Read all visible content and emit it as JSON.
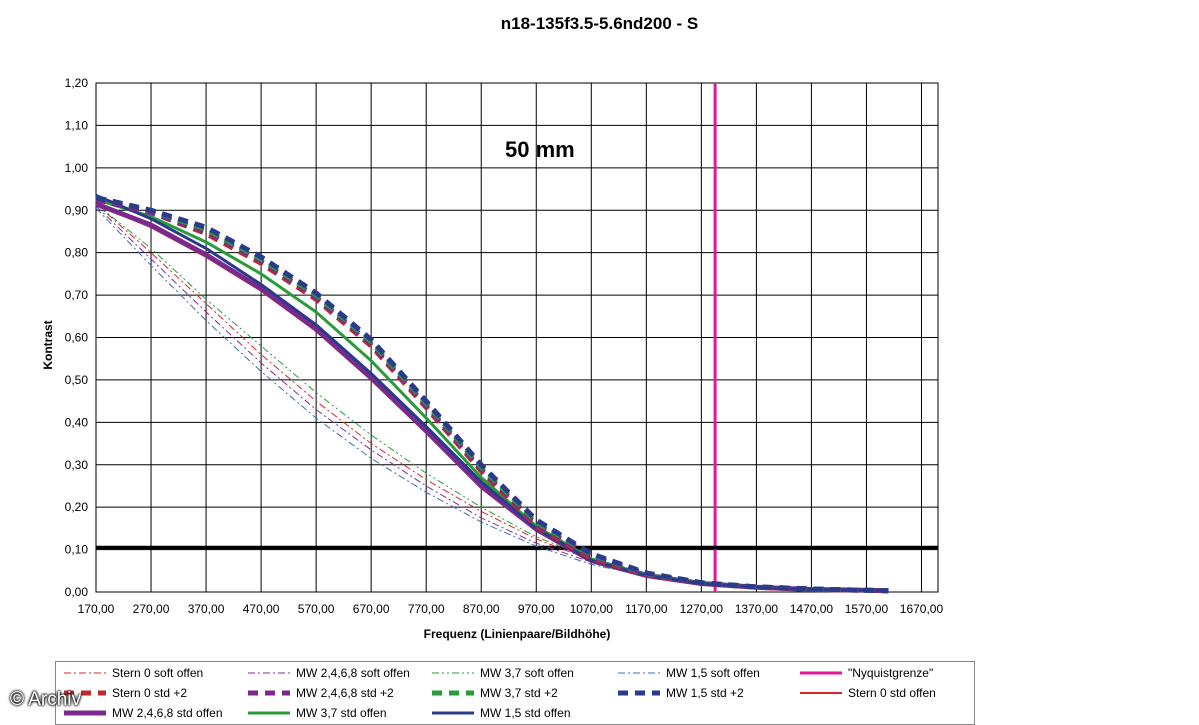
{
  "chart_data": {
    "type": "line",
    "title": "n18-135f3.5-5.6nd200 - S",
    "annotation": "50 mm",
    "xlabel": "Frequenz (Linienpaare/Bildhöhe)",
    "ylabel": "Kontrast",
    "xlim": [
      170,
      1700
    ],
    "ylim": [
      0,
      1.2
    ],
    "xticks": [
      "170,00",
      "270,00",
      "370,00",
      "470,00",
      "570,00",
      "670,00",
      "770,00",
      "870,00",
      "970,00",
      "1070,00",
      "1170,00",
      "1270,00",
      "1370,00",
      "1470,00",
      "1570,00",
      "1670,00"
    ],
    "yticks": [
      "0,00",
      "0,10",
      "0,20",
      "0,30",
      "0,40",
      "0,50",
      "0,60",
      "0,70",
      "0,80",
      "0,90",
      "1,00",
      "1,10",
      "1,20"
    ],
    "grid": true,
    "reference_lines": [
      {
        "kind": "vertical",
        "x": 1295,
        "color": "#e0199a"
      },
      {
        "kind": "horizontal",
        "y": 0.105,
        "color": "#000000"
      }
    ],
    "series": [
      {
        "name": "Stern 0 soft offen",
        "color": "#d8262c",
        "dash": "dashdot",
        "width": 1,
        "x": [
          170,
          270,
          370,
          470,
          570,
          670,
          770,
          870,
          970,
          1070,
          1170,
          1270,
          1370,
          1470,
          1570,
          1610
        ],
        "y": [
          0.915,
          0.8,
          0.68,
          0.56,
          0.45,
          0.35,
          0.265,
          0.19,
          0.125,
          0.075,
          0.042,
          0.022,
          0.012,
          0.007,
          0.004,
          0.003
        ]
      },
      {
        "name": "MW 2,4,6,8 soft offen",
        "color": "#8a2a93",
        "dash": "dashdot",
        "width": 1,
        "x": [
          170,
          270,
          370,
          470,
          570,
          670,
          770,
          870,
          970,
          1070,
          1170,
          1270,
          1370,
          1470,
          1570,
          1610
        ],
        "y": [
          0.91,
          0.785,
          0.66,
          0.54,
          0.43,
          0.335,
          0.25,
          0.175,
          0.115,
          0.07,
          0.04,
          0.021,
          0.012,
          0.007,
          0.004,
          0.003
        ]
      },
      {
        "name": "MW 3,7 soft offen",
        "color": "#2a9b3a",
        "dash": "dashdotdot",
        "width": 1,
        "x": [
          170,
          270,
          370,
          470,
          570,
          670,
          770,
          870,
          970,
          1070,
          1170,
          1270,
          1370,
          1470,
          1570,
          1610
        ],
        "y": [
          0.915,
          0.81,
          0.69,
          0.58,
          0.47,
          0.37,
          0.28,
          0.2,
          0.13,
          0.08,
          0.045,
          0.024,
          0.013,
          0.007,
          0.004,
          0.003
        ]
      },
      {
        "name": "MW 1,5 soft offen",
        "color": "#3a6fb5",
        "dash": "dashdot",
        "width": 1,
        "x": [
          170,
          270,
          370,
          470,
          570,
          670,
          770,
          870,
          970,
          1070,
          1170,
          1270,
          1370,
          1470,
          1570,
          1610
        ],
        "y": [
          0.905,
          0.77,
          0.64,
          0.52,
          0.41,
          0.315,
          0.235,
          0.165,
          0.108,
          0.065,
          0.037,
          0.02,
          0.011,
          0.006,
          0.004,
          0.003
        ]
      },
      {
        "name": "\"Nyquistgrenze\"",
        "color": "#e0199a",
        "dash": "solid",
        "width": 3
      },
      {
        "name": "Stern 0 std +2",
        "color": "#c0282e",
        "dash": "dash",
        "width": 5,
        "x": [
          170,
          270,
          370,
          470,
          570,
          670,
          770,
          870,
          970,
          1070,
          1170,
          1270,
          1370,
          1470,
          1570,
          1610
        ],
        "y": [
          0.925,
          0.895,
          0.845,
          0.775,
          0.69,
          0.58,
          0.435,
          0.285,
          0.155,
          0.08,
          0.04,
          0.02,
          0.011,
          0.006,
          0.004,
          0.003
        ]
      },
      {
        "name": "MW 2,4,6,8 std +2",
        "color": "#7b2a8c",
        "dash": "dash",
        "width": 5,
        "x": [
          170,
          270,
          370,
          470,
          570,
          670,
          770,
          870,
          970,
          1070,
          1170,
          1270,
          1370,
          1470,
          1570,
          1610
        ],
        "y": [
          0.925,
          0.895,
          0.85,
          0.78,
          0.695,
          0.585,
          0.44,
          0.29,
          0.16,
          0.085,
          0.042,
          0.021,
          0.012,
          0.007,
          0.004,
          0.003
        ]
      },
      {
        "name": "MW 3,7 std +2",
        "color": "#2a9b3a",
        "dash": "dash",
        "width": 5,
        "x": [
          170,
          270,
          370,
          470,
          570,
          670,
          770,
          870,
          970,
          1070,
          1170,
          1270,
          1370,
          1470,
          1570,
          1610
        ],
        "y": [
          0.93,
          0.9,
          0.855,
          0.785,
          0.7,
          0.59,
          0.445,
          0.295,
          0.165,
          0.088,
          0.044,
          0.022,
          0.012,
          0.007,
          0.004,
          0.003
        ]
      },
      {
        "name": "MW 1,5 std +2",
        "color": "#2a3a8c",
        "dash": "dash",
        "width": 5,
        "x": [
          170,
          270,
          370,
          470,
          570,
          670,
          770,
          870,
          970,
          1070,
          1170,
          1270,
          1370,
          1470,
          1570,
          1610
        ],
        "y": [
          0.93,
          0.9,
          0.86,
          0.79,
          0.705,
          0.595,
          0.45,
          0.3,
          0.17,
          0.09,
          0.045,
          0.022,
          0.012,
          0.007,
          0.004,
          0.003
        ]
      },
      {
        "name": "Stern 0 std offen",
        "color": "#d8262c",
        "dash": "solid",
        "width": 2,
        "x": [
          170,
          270,
          370,
          470,
          570,
          670,
          770,
          870,
          970,
          1070,
          1170,
          1270,
          1370,
          1470,
          1570,
          1610
        ],
        "y": [
          0.915,
          0.86,
          0.79,
          0.71,
          0.615,
          0.5,
          0.375,
          0.245,
          0.145,
          0.072,
          0.038,
          0.02,
          0.011,
          0.006,
          0.004,
          0.003
        ]
      },
      {
        "name": "MW 2,4,6,8 std offen",
        "color": "#7b2a8c",
        "dash": "solid",
        "width": 5,
        "x": [
          170,
          270,
          370,
          470,
          570,
          670,
          770,
          870,
          970,
          1070,
          1170,
          1270,
          1370,
          1470,
          1570,
          1610
        ],
        "y": [
          0.915,
          0.865,
          0.795,
          0.715,
          0.62,
          0.505,
          0.38,
          0.25,
          0.148,
          0.074,
          0.039,
          0.02,
          0.011,
          0.006,
          0.004,
          0.003
        ]
      },
      {
        "name": "MW 3,7 std offen",
        "color": "#2a9b3a",
        "dash": "solid",
        "width": 3,
        "x": [
          170,
          270,
          370,
          470,
          570,
          670,
          770,
          870,
          970,
          1070,
          1170,
          1270,
          1370,
          1470,
          1570,
          1610
        ],
        "y": [
          0.925,
          0.885,
          0.825,
          0.75,
          0.66,
          0.545,
          0.41,
          0.27,
          0.155,
          0.078,
          0.04,
          0.021,
          0.011,
          0.006,
          0.004,
          0.003
        ]
      },
      {
        "name": "MW 1,5 std offen",
        "color": "#2a3a8c",
        "dash": "solid",
        "width": 3,
        "x": [
          170,
          270,
          370,
          470,
          570,
          670,
          770,
          870,
          970,
          1070,
          1170,
          1270,
          1370,
          1470,
          1570,
          1610
        ],
        "y": [
          0.935,
          0.88,
          0.81,
          0.725,
          0.63,
          0.515,
          0.39,
          0.26,
          0.15,
          0.075,
          0.039,
          0.02,
          0.011,
          0.006,
          0.004,
          0.003
        ]
      }
    ]
  },
  "watermark": "© Archiv"
}
